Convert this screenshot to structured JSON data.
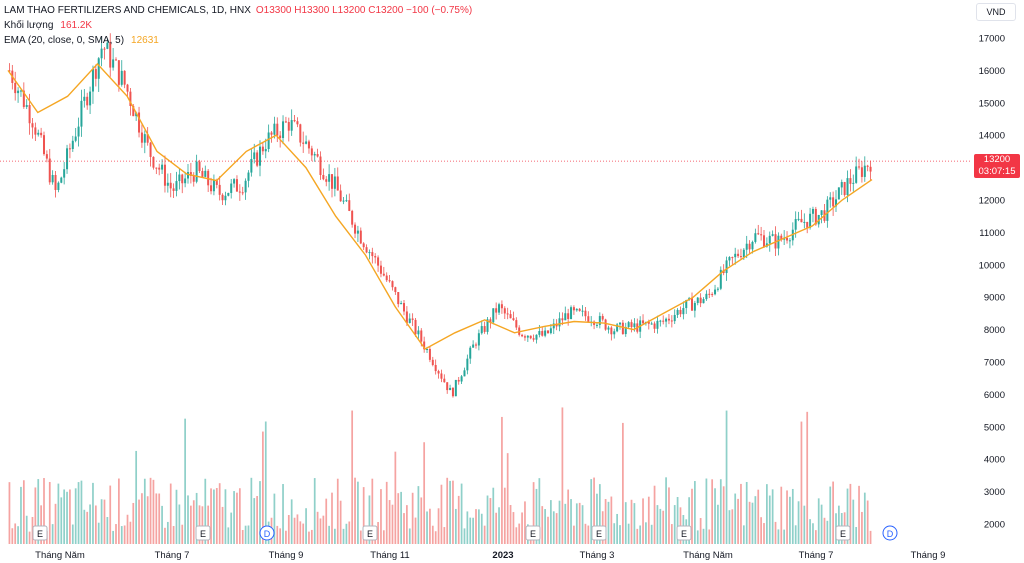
{
  "legend": {
    "symbol": "LAM THAO FERTILIZERS AND CHEMICALS, 1D, HNX",
    "ohlc": "O13300 H13300 L13200 C13200 −100 (−0.75%)",
    "volume_label": "Khối lượng",
    "volume_value": "161.2K",
    "ema_label": "EMA (20, close, 0, SMA, 5)",
    "ema_value": "12631"
  },
  "currency": "VND",
  "last_price": {
    "price": "13200",
    "countdown": "03:07:15"
  },
  "colors": {
    "up": "#26a69a",
    "down": "#ef5350",
    "ema": "#f5a623",
    "vol_up": "#8fd0c9",
    "vol_down": "#f5a3a1",
    "grid": "#f0f3fa",
    "axis_text": "#131722"
  },
  "event_markers": [
    {
      "label": "E",
      "month": "Tháng Năm"
    },
    {
      "label": "E",
      "month": "Tháng 7"
    },
    {
      "label": "D",
      "month": "Tháng 9"
    },
    {
      "label": "E",
      "month": "Tháng 11"
    },
    {
      "label": "E",
      "month": "2023"
    },
    {
      "label": "E",
      "month": "Tháng 3"
    },
    {
      "label": "E",
      "month": "Tháng Năm"
    },
    {
      "label": "E",
      "month": "Tháng 7"
    },
    {
      "label": "D",
      "month": "Tháng 9"
    }
  ],
  "chart_data": {
    "type": "line",
    "title": "LAM THAO FERTILIZERS AND CHEMICALS, 1D, HNX",
    "y_ticks": [
      "17000",
      "16000",
      "15000",
      "14000",
      "13000",
      "12000",
      "11000",
      "10000",
      "9000",
      "8000",
      "7000",
      "6000",
      "5000",
      "4000",
      "3000",
      "2000"
    ],
    "price_ylim": [
      2000,
      17000
    ],
    "x_ticks": [
      "Tháng Năm",
      "Tháng 7",
      "Tháng 9",
      "Tháng 11",
      "2023",
      "Tháng 3",
      "Tháng Năm",
      "Tháng 7",
      "Tháng 9"
    ],
    "series": [
      {
        "name": "Close",
        "points": [
          {
            "x": "Tháng Năm",
            "y": 16000
          },
          {
            "x": "Tháng Năm",
            "y": 14500
          },
          {
            "x": "Tháng Năm",
            "y": 12200
          },
          {
            "x": "Tháng Năm",
            "y": 14500
          },
          {
            "x": "Tháng 7",
            "y": 16800
          },
          {
            "x": "Tháng 7",
            "y": 15500
          },
          {
            "x": "Tháng 7",
            "y": 13500
          },
          {
            "x": "Tháng 7",
            "y": 12300
          },
          {
            "x": "Tháng 7",
            "y": 12900
          },
          {
            "x": "Tháng 7",
            "y": 12200
          },
          {
            "x": "Tháng 9",
            "y": 12500
          },
          {
            "x": "Tháng 9",
            "y": 13800
          },
          {
            "x": "Tháng 9",
            "y": 14400
          },
          {
            "x": "Tháng 9",
            "y": 13500
          },
          {
            "x": "Tháng 9",
            "y": 12400
          },
          {
            "x": "Tháng 11",
            "y": 11000
          },
          {
            "x": "Tháng 11",
            "y": 9800
          },
          {
            "x": "Tháng 11",
            "y": 8500
          },
          {
            "x": "Tháng 11",
            "y": 7300
          },
          {
            "x": "Tháng 11",
            "y": 6000
          },
          {
            "x": "Tháng 11",
            "y": 7600
          },
          {
            "x": "2023",
            "y": 8700
          },
          {
            "x": "2023",
            "y": 7900
          },
          {
            "x": "2023",
            "y": 7800
          },
          {
            "x": "2023",
            "y": 8500
          },
          {
            "x": "2023",
            "y": 8400
          },
          {
            "x": "Tháng 3",
            "y": 8000
          },
          {
            "x": "Tháng 3",
            "y": 8100
          },
          {
            "x": "Tháng 3",
            "y": 8200
          },
          {
            "x": "Tháng 3",
            "y": 8700
          },
          {
            "x": "Tháng 3",
            "y": 9000
          },
          {
            "x": "Tháng Năm",
            "y": 10100
          },
          {
            "x": "Tháng Năm",
            "y": 10900
          },
          {
            "x": "Tháng Năm",
            "y": 10700
          },
          {
            "x": "Tháng Năm",
            "y": 11300
          },
          {
            "x": "Tháng 7",
            "y": 11600
          },
          {
            "x": "Tháng 7",
            "y": 12500
          },
          {
            "x": "Tháng 7",
            "y": 13200
          }
        ]
      },
      {
        "name": "EMA (20, close, 0, SMA, 5)",
        "points": [
          {
            "x": "Tháng Năm",
            "y": 16000
          },
          {
            "x": "Tháng Năm",
            "y": 14700
          },
          {
            "x": "Tháng Năm",
            "y": 15200
          },
          {
            "x": "Tháng Năm",
            "y": 16200
          },
          {
            "x": "Tháng 7",
            "y": 15200
          },
          {
            "x": "Tháng 7",
            "y": 13500
          },
          {
            "x": "Tháng 7",
            "y": 12800
          },
          {
            "x": "Tháng 7",
            "y": 12600
          },
          {
            "x": "Tháng 9",
            "y": 13500
          },
          {
            "x": "Tháng 9",
            "y": 14000
          },
          {
            "x": "Tháng 9",
            "y": 13000
          },
          {
            "x": "Tháng 11",
            "y": 11500
          },
          {
            "x": "Tháng 11",
            "y": 10300
          },
          {
            "x": "Tháng 11",
            "y": 8700
          },
          {
            "x": "Tháng 11",
            "y": 7400
          },
          {
            "x": "2023",
            "y": 7900
          },
          {
            "x": "2023",
            "y": 8300
          },
          {
            "x": "2023",
            "y": 7900
          },
          {
            "x": "2023",
            "y": 8100
          },
          {
            "x": "Tháng 3",
            "y": 8250
          },
          {
            "x": "Tháng 3",
            "y": 8200
          },
          {
            "x": "Tháng 3",
            "y": 8000
          },
          {
            "x": "Tháng 3",
            "y": 8500
          },
          {
            "x": "Tháng Năm",
            "y": 9000
          },
          {
            "x": "Tháng Năm",
            "y": 9800
          },
          {
            "x": "Tháng Năm",
            "y": 10400
          },
          {
            "x": "Tháng Năm",
            "y": 10800
          },
          {
            "x": "Tháng 7",
            "y": 11200
          },
          {
            "x": "Tháng 7",
            "y": 12000
          },
          {
            "x": "Tháng 7",
            "y": 12631
          }
        ]
      }
    ],
    "last_close": 13200,
    "volume_last": "161.2K",
    "grid": false,
    "legend_position": "top-left"
  }
}
